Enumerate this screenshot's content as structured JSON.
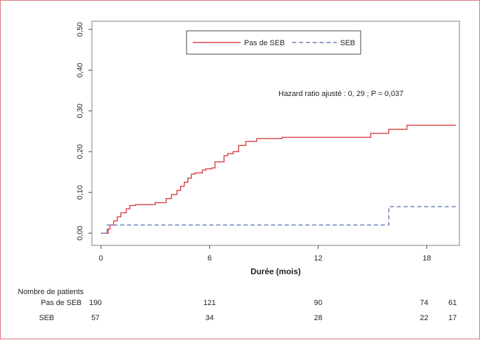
{
  "chart_data": {
    "type": "line",
    "title": "",
    "xlabel": "Durée (mois)",
    "ylabel": "",
    "xlim": [
      -0.5,
      19.8
    ],
    "ylim": [
      -0.03,
      0.52
    ],
    "x_ticks": [
      0,
      6,
      12,
      18
    ],
    "x_tick_labels": [
      "0",
      "6",
      "12",
      "18"
    ],
    "y_ticks": [
      0,
      0.1,
      0.2,
      0.3,
      0.4,
      0.5
    ],
    "y_tick_labels": [
      "0,00",
      "0,10",
      "0,20",
      "0,30",
      "0,40",
      "0,50"
    ],
    "grid": false,
    "legend_position": "top-center",
    "annotation": "Hazard ratio ajusté : 0, 29 ; P  = 0,037",
    "series": [
      {
        "name": "Pas de SEB",
        "color": "#d9474b",
        "dash": "solid",
        "x": [
          0,
          0.4,
          0.4,
          0.5,
          0.5,
          0.7,
          0.7,
          0.9,
          0.9,
          1.1,
          1.1,
          1.4,
          1.4,
          1.6,
          1.6,
          1.9,
          1.9,
          3.0,
          3.0,
          3.6,
          3.6,
          3.9,
          3.9,
          4.2,
          4.2,
          4.4,
          4.4,
          4.6,
          4.6,
          4.8,
          4.8,
          5.0,
          5.0,
          5.2,
          5.2,
          5.6,
          5.6,
          5.8,
          5.8,
          6.1,
          6.1,
          6.3,
          6.3,
          6.8,
          6.8,
          7.0,
          7.0,
          7.3,
          7.3,
          7.6,
          7.6,
          8.0,
          8.0,
          8.6,
          8.6,
          10.0,
          10.0,
          14.9,
          14.9,
          15.9,
          15.9,
          16.9,
          16.9,
          19.6
        ],
        "y": [
          0,
          0,
          0.01,
          0.01,
          0.02,
          0.02,
          0.03,
          0.03,
          0.04,
          0.04,
          0.05,
          0.05,
          0.06,
          0.06,
          0.068,
          0.068,
          0.07,
          0.07,
          0.075,
          0.075,
          0.085,
          0.085,
          0.095,
          0.095,
          0.105,
          0.105,
          0.115,
          0.115,
          0.125,
          0.125,
          0.135,
          0.135,
          0.145,
          0.145,
          0.148,
          0.148,
          0.155,
          0.155,
          0.158,
          0.158,
          0.16,
          0.16,
          0.175,
          0.175,
          0.19,
          0.19,
          0.195,
          0.195,
          0.2,
          0.2,
          0.215,
          0.215,
          0.225,
          0.225,
          0.232,
          0.232,
          0.235,
          0.235,
          0.245,
          0.245,
          0.255,
          0.255,
          0.265,
          0.265
        ]
      },
      {
        "name": "SEB",
        "color": "#6a7fb8",
        "dash": "dashed",
        "x": [
          0,
          0.35,
          0.35,
          15.9,
          15.9,
          19.6
        ],
        "y": [
          0,
          0,
          0.02,
          0.02,
          0.065,
          0.065
        ]
      }
    ],
    "risk_table": {
      "title": "Nombre de patients",
      "rows": [
        {
          "label": "Pas de SEB",
          "values": [
            "190",
            "121",
            "90",
            "74",
            "61"
          ]
        },
        {
          "label": "SEB",
          "values": [
            "57",
            "34",
            "28",
            "22",
            "17"
          ]
        }
      ]
    }
  }
}
